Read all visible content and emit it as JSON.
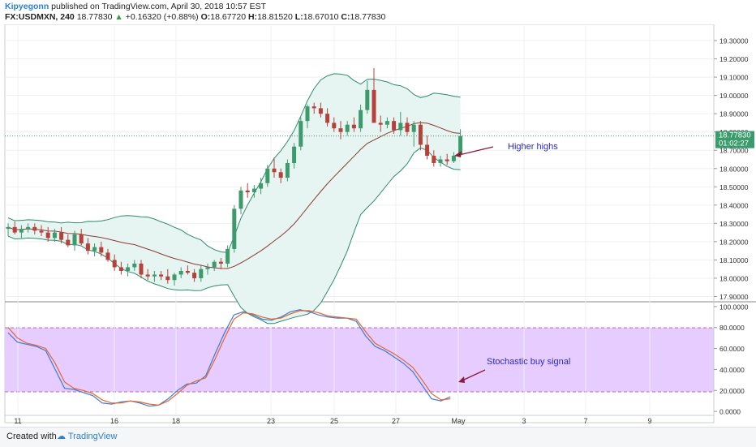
{
  "header": {
    "author": "Kipyegonn",
    "published": "published on TradingView.com, April 30, 2018 10:57 EST",
    "symbol": "FX:USDMXN, 240",
    "last": "18.77830",
    "change_arrow": "▲",
    "change": "+0.16320 (+0.88%)",
    "o_label": "O:",
    "o_value": "18.67720",
    "h_label": "H:",
    "h_value": "18.81520",
    "l_label": "L:",
    "l_value": "18.67010",
    "c_label": "C:",
    "c_value": "18.77830"
  },
  "price_badge": {
    "price": "18.77830",
    "countdown": "01:02:27"
  },
  "annotations": {
    "higher_highs": "Higher highs",
    "stochastic": "Stochastic buy signal"
  },
  "footer": {
    "created": "Created with",
    "brand": "TradingView"
  },
  "colors": {
    "up": "#3d9a6c",
    "down": "#b5413a",
    "band": "#2e8b6a",
    "band_fill": "#e6f5f1",
    "basis": "#8b3a3a",
    "stoch_k": "#3b7dd8",
    "stoch_d": "#e5662a",
    "stoch_band": "#e6ccff"
  },
  "chart_data": [
    {
      "type": "candlestick",
      "y_ticks": [
        "19.30000",
        "19.20000",
        "19.10000",
        "19.00000",
        "18.90000",
        "18.80000",
        "18.70000",
        "18.60000",
        "18.50000",
        "18.40000",
        "18.30000",
        "18.20000",
        "18.10000",
        "18.00000",
        "17.90000"
      ],
      "ylim": [
        17.88,
        19.38
      ],
      "x_ticks": [
        "11",
        "16",
        "18",
        "23",
        "25",
        "27",
        "May",
        "3",
        "7",
        "9"
      ],
      "indicators": [
        "Bollinger Bands (upper, basis, lower)"
      ],
      "candles_ohlc": [
        [
          18.27,
          18.3,
          18.23,
          18.28
        ],
        [
          18.28,
          18.31,
          18.24,
          18.25
        ],
        [
          18.25,
          18.29,
          18.22,
          18.27
        ],
        [
          18.27,
          18.3,
          18.25,
          18.28
        ],
        [
          18.28,
          18.3,
          18.24,
          18.26
        ],
        [
          18.26,
          18.29,
          18.23,
          18.25
        ],
        [
          18.25,
          18.28,
          18.2,
          18.22
        ],
        [
          18.22,
          18.27,
          18.2,
          18.25
        ],
        [
          18.25,
          18.28,
          18.19,
          18.21
        ],
        [
          18.21,
          18.24,
          18.17,
          18.18
        ],
        [
          18.18,
          18.26,
          18.15,
          18.24
        ],
        [
          18.24,
          18.27,
          18.18,
          18.19
        ],
        [
          18.19,
          18.22,
          18.13,
          18.15
        ],
        [
          18.15,
          18.19,
          18.12,
          18.17
        ],
        [
          18.17,
          18.2,
          18.12,
          18.14
        ],
        [
          18.14,
          18.16,
          18.09,
          18.1
        ],
        [
          18.1,
          18.13,
          18.04,
          18.06
        ],
        [
          18.06,
          18.09,
          18.02,
          18.04
        ],
        [
          18.04,
          18.08,
          18.01,
          18.06
        ],
        [
          18.06,
          18.1,
          18.04,
          18.08
        ],
        [
          18.08,
          18.1,
          18.0,
          18.02
        ],
        [
          18.02,
          18.05,
          17.99,
          18.01
        ],
        [
          18.01,
          18.04,
          17.98,
          18.02
        ],
        [
          18.02,
          18.04,
          17.99,
          18.01
        ],
        [
          18.01,
          18.05,
          17.97,
          17.99
        ],
        [
          17.99,
          18.03,
          17.96,
          18.02
        ],
        [
          18.02,
          18.06,
          18.0,
          18.04
        ],
        [
          18.04,
          18.07,
          18.02,
          18.03
        ],
        [
          18.03,
          18.05,
          17.98,
          18.0
        ],
        [
          18.0,
          18.07,
          17.98,
          18.05
        ],
        [
          18.05,
          18.08,
          18.02,
          18.06
        ],
        [
          18.06,
          18.1,
          18.04,
          18.09
        ],
        [
          18.09,
          18.11,
          18.05,
          18.08
        ],
        [
          18.08,
          18.18,
          18.06,
          18.16
        ],
        [
          18.16,
          18.4,
          18.14,
          18.38
        ],
        [
          18.38,
          18.5,
          18.35,
          18.48
        ],
        [
          18.48,
          18.52,
          18.44,
          18.47
        ],
        [
          18.47,
          18.51,
          18.44,
          18.49
        ],
        [
          18.49,
          18.55,
          18.46,
          18.52
        ],
        [
          18.52,
          18.62,
          18.5,
          18.6
        ],
        [
          18.6,
          18.66,
          18.55,
          18.58
        ],
        [
          18.58,
          18.6,
          18.52,
          18.55
        ],
        [
          18.55,
          18.65,
          18.53,
          18.63
        ],
        [
          18.63,
          18.74,
          18.6,
          18.72
        ],
        [
          18.72,
          18.88,
          18.7,
          18.86
        ],
        [
          18.86,
          18.95,
          18.82,
          18.94
        ],
        [
          18.94,
          18.96,
          18.9,
          18.93
        ],
        [
          18.93,
          18.96,
          18.88,
          18.9
        ],
        [
          18.9,
          18.93,
          18.83,
          18.85
        ],
        [
          18.85,
          18.88,
          18.8,
          18.82
        ],
        [
          18.82,
          18.86,
          18.76,
          18.8
        ],
        [
          18.8,
          18.86,
          18.78,
          18.84
        ],
        [
          18.84,
          18.88,
          18.8,
          18.82
        ],
        [
          18.82,
          18.95,
          18.8,
          18.92
        ],
        [
          18.92,
          19.08,
          18.9,
          19.03
        ],
        [
          19.03,
          19.15,
          18.98,
          18.85
        ],
        [
          18.85,
          18.89,
          18.8,
          18.84
        ],
        [
          18.84,
          18.88,
          18.82,
          18.86
        ],
        [
          18.86,
          18.88,
          18.79,
          18.81
        ],
        [
          18.81,
          18.91,
          18.78,
          18.85
        ],
        [
          18.85,
          18.88,
          18.78,
          18.8
        ],
        [
          18.8,
          18.86,
          18.72,
          18.84
        ],
        [
          18.84,
          18.86,
          18.7,
          18.73
        ],
        [
          18.73,
          18.78,
          18.65,
          18.67
        ],
        [
          18.67,
          18.7,
          18.61,
          18.63
        ],
        [
          18.63,
          18.67,
          18.61,
          18.65
        ],
        [
          18.65,
          18.68,
          18.62,
          18.64
        ],
        [
          18.64,
          18.69,
          18.63,
          18.67
        ],
        [
          18.6772,
          18.8152,
          18.6701,
          18.7783
        ]
      ],
      "last_price": 18.7783
    },
    {
      "type": "line",
      "title": "Stochastic",
      "y_ticks": [
        "100.0000",
        "80.0000",
        "60.0000",
        "40.0000",
        "20.0000",
        "0.0000"
      ],
      "ylim": [
        -3,
        103
      ],
      "band": [
        20,
        80
      ],
      "series": [
        {
          "values": [
            75,
            66,
            64,
            62,
            58,
            40,
            22,
            21,
            18,
            15,
            8,
            7,
            9,
            10,
            8,
            5,
            6,
            12,
            20,
            26,
            27,
            34,
            55,
            75,
            92,
            95,
            92,
            88,
            87,
            90,
            95,
            97,
            95,
            92,
            90,
            89,
            89,
            86,
            72,
            62,
            58,
            52,
            46,
            38,
            25,
            12,
            10,
            14
          ]
        },
        {
          "values": [
            80,
            70,
            65,
            63,
            60,
            46,
            28,
            22,
            20,
            17,
            11,
            8,
            8,
            10,
            9,
            7,
            6,
            10,
            17,
            25,
            29,
            32,
            50,
            70,
            88,
            94,
            93,
            90,
            88,
            89,
            93,
            96,
            96,
            94,
            91,
            90,
            89,
            88,
            76,
            65,
            60,
            55,
            49,
            42,
            30,
            17,
            11,
            12
          ]
        }
      ]
    }
  ]
}
